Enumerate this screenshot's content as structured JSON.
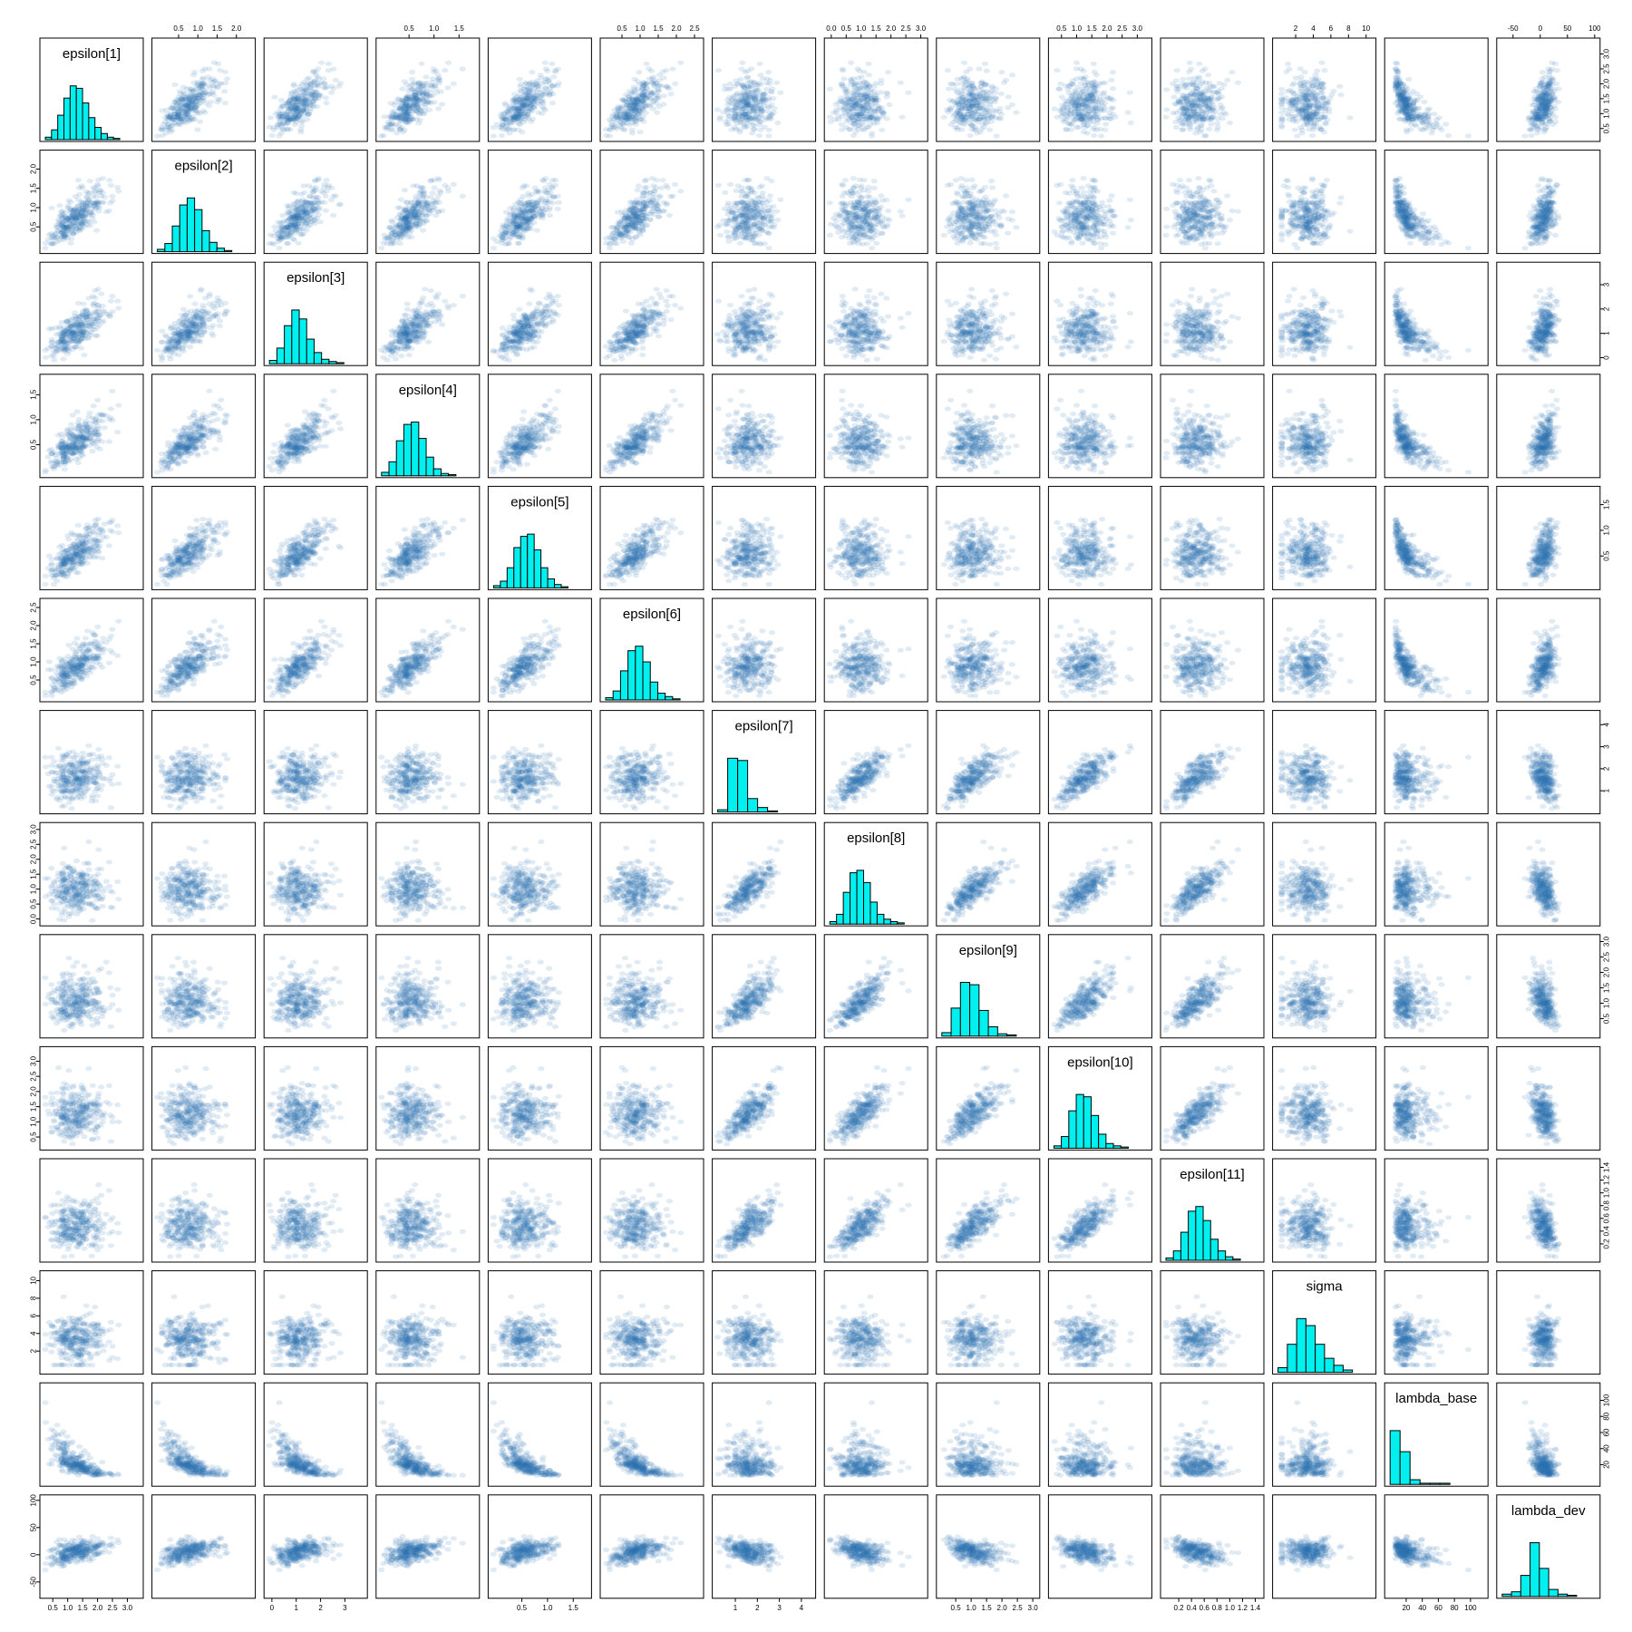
{
  "chart_data": {
    "type": "scatter-matrix",
    "title": "",
    "variables": [
      {
        "name": "epsilon[1]",
        "range": [
          0.25,
          3.35
        ],
        "ticks": [
          "0.5",
          "1.0",
          "1.5",
          "2.0",
          "2.5",
          "3.0"
        ],
        "hist": [
          2,
          8,
          20,
          34,
          44,
          42,
          30,
          18,
          10,
          5,
          2,
          1
        ]
      },
      {
        "name": "epsilon[2]",
        "range": [
          -0.05,
          2.35
        ],
        "ticks": [
          "0.5",
          "1.0",
          "1.5",
          "2.0"
        ],
        "hist": [
          2,
          7,
          22,
          40,
          46,
          36,
          18,
          8,
          3,
          1
        ]
      },
      {
        "name": "epsilon[3]",
        "range": [
          -0.1,
          3.7
        ],
        "ticks": [
          "0",
          "1",
          "2",
          "3"
        ],
        "hist": [
          3,
          14,
          34,
          48,
          40,
          22,
          10,
          4,
          2,
          1
        ]
      },
      {
        "name": "epsilon[4]",
        "range": [
          -0.05,
          1.8
        ],
        "ticks": [
          "0.5",
          "1.0",
          "1.5"
        ],
        "hist": [
          3,
          12,
          30,
          44,
          46,
          32,
          16,
          6,
          2,
          1
        ]
      },
      {
        "name": "epsilon[5]",
        "range": [
          -0.05,
          1.75
        ],
        "ticks": [
          "0.5",
          "1.0",
          "1.5"
        ],
        "hist": [
          2,
          6,
          18,
          36,
          46,
          48,
          34,
          18,
          8,
          3,
          1
        ]
      },
      {
        "name": "epsilon[6]",
        "range": [
          0.05,
          2.6
        ],
        "ticks": [
          "0.5",
          "1.0",
          "1.5",
          "2.0",
          "2.5"
        ],
        "hist": [
          2,
          8,
          26,
          44,
          48,
          34,
          16,
          6,
          3,
          1
        ]
      },
      {
        "name": "epsilon[7]",
        "range": [
          0.2,
          4.4
        ],
        "ticks": [
          "1",
          "2",
          "3",
          "4"
        ],
        "hist": [
          2,
          48,
          46,
          12,
          4,
          1
        ]
      },
      {
        "name": "epsilon[8]",
        "range": [
          -0.05,
          3.05
        ],
        "ticks": [
          "0.0",
          "0.5",
          "1.0",
          "1.5",
          "2.0",
          "2.5",
          "3.0"
        ],
        "hist": [
          2,
          8,
          26,
          42,
          44,
          34,
          18,
          8,
          4,
          2,
          1
        ]
      },
      {
        "name": "epsilon[9]",
        "range": [
          0.05,
          3.05
        ],
        "ticks": [
          "0.5",
          "1.0",
          "1.5",
          "2.0",
          "2.5",
          "3.0"
        ],
        "hist": [
          3,
          24,
          46,
          44,
          22,
          8,
          2,
          1
        ]
      },
      {
        "name": "epsilon[10]",
        "range": [
          0.25,
          3.3
        ],
        "ticks": [
          "0.5",
          "1.0",
          "1.5",
          "2.0",
          "2.5",
          "3.0"
        ],
        "hist": [
          2,
          10,
          32,
          46,
          44,
          28,
          12,
          4,
          2,
          1
        ]
      },
      {
        "name": "epsilon[11]",
        "range": [
          0.0,
          1.45
        ],
        "ticks": [
          "0.2",
          "0.4",
          "0.6",
          "0.8",
          "1.0",
          "1.2",
          "1.4"
        ],
        "hist": [
          2,
          8,
          24,
          42,
          46,
          34,
          18,
          8,
          3,
          1
        ]
      },
      {
        "name": "sigma",
        "range": [
          0.0,
          10.5
        ],
        "ticks": [
          "2",
          "4",
          "6",
          "8",
          "10"
        ],
        "hist": [
          4,
          24,
          46,
          40,
          24,
          12,
          6,
          2
        ]
      },
      {
        "name": "lambda_base",
        "range": [
          0.0,
          115.0
        ],
        "ticks": [
          "20",
          "40",
          "60",
          "80",
          "100"
        ],
        "hist": [
          46,
          28,
          4,
          1,
          1,
          1
        ]
      },
      {
        "name": "lambda_dev",
        "range": [
          -70.0,
          100.0
        ],
        "ticks": [
          "-50",
          "0",
          "50",
          "100"
        ],
        "hist": [
          2,
          4,
          18,
          46,
          24,
          6,
          2,
          1
        ]
      }
    ],
    "axis_placement": {
      "top": [
        2,
        4,
        6,
        8,
        10,
        12,
        14
      ],
      "bottom": [
        1,
        3,
        5,
        7,
        9,
        11,
        13
      ],
      "left": [
        2,
        4,
        6,
        8,
        10,
        12,
        14
      ],
      "right": [
        1,
        3,
        5,
        7,
        9,
        11,
        13
      ]
    },
    "correlation_structure": {
      "group_a": [
        "epsilon[1]",
        "epsilon[2]",
        "epsilon[3]",
        "epsilon[4]",
        "epsilon[5]",
        "epsilon[6]"
      ],
      "group_b": [
        "epsilon[7]",
        "epsilon[8]",
        "epsilon[9]",
        "epsilon[10]",
        "epsilon[11]"
      ],
      "within_group_correlation": 0.75,
      "lambda_base_vs_group_a": "strong negative, curved",
      "lambda_dev_vs_group_a": "positive",
      "lambda_dev_vs_group_b": "negative"
    }
  },
  "colors": {
    "histogram_fill": "#00f0f0",
    "point_color": "#2a6fb0",
    "border": "#000000",
    "background": "#ffffff"
  }
}
